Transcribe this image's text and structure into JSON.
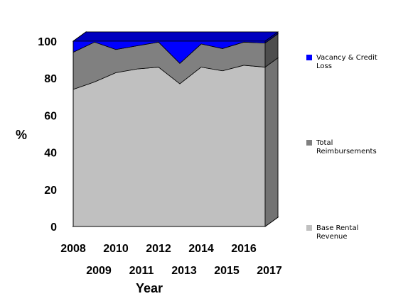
{
  "chart_data": {
    "type": "area",
    "stacked": true,
    "three_d": true,
    "x": [
      2008,
      2009,
      2010,
      2011,
      2012,
      2013,
      2014,
      2015,
      2016,
      2017
    ],
    "x_tick_labels": [
      "2008",
      "2009",
      "2010",
      "2011",
      "2012",
      "2013",
      "2014",
      "2015",
      "2016",
      "2017"
    ],
    "xlabel": "Year",
    "ylabel": "%",
    "ylim": [
      0,
      100
    ],
    "y_ticks": [
      0,
      20,
      40,
      60,
      80,
      100
    ],
    "grid": false,
    "legend_position": "right",
    "series": [
      {
        "name": "Base Rental Revenue",
        "color": "#C0C0C0",
        "values": [
          74,
          78,
          83,
          85,
          86,
          77,
          86,
          84,
          87,
          86
        ]
      },
      {
        "name": "Total Reimbursements",
        "color": "#808080",
        "values": [
          20,
          21.5,
          12.5,
          12.5,
          13.5,
          11,
          12.5,
          12,
          12.5,
          13
        ]
      },
      {
        "name": "Vacancy & Credit Loss",
        "color": "#0000FF",
        "values": [
          6,
          0.5,
          4.5,
          2.5,
          0.5,
          12,
          1.5,
          4,
          0.5,
          1
        ]
      }
    ]
  }
}
